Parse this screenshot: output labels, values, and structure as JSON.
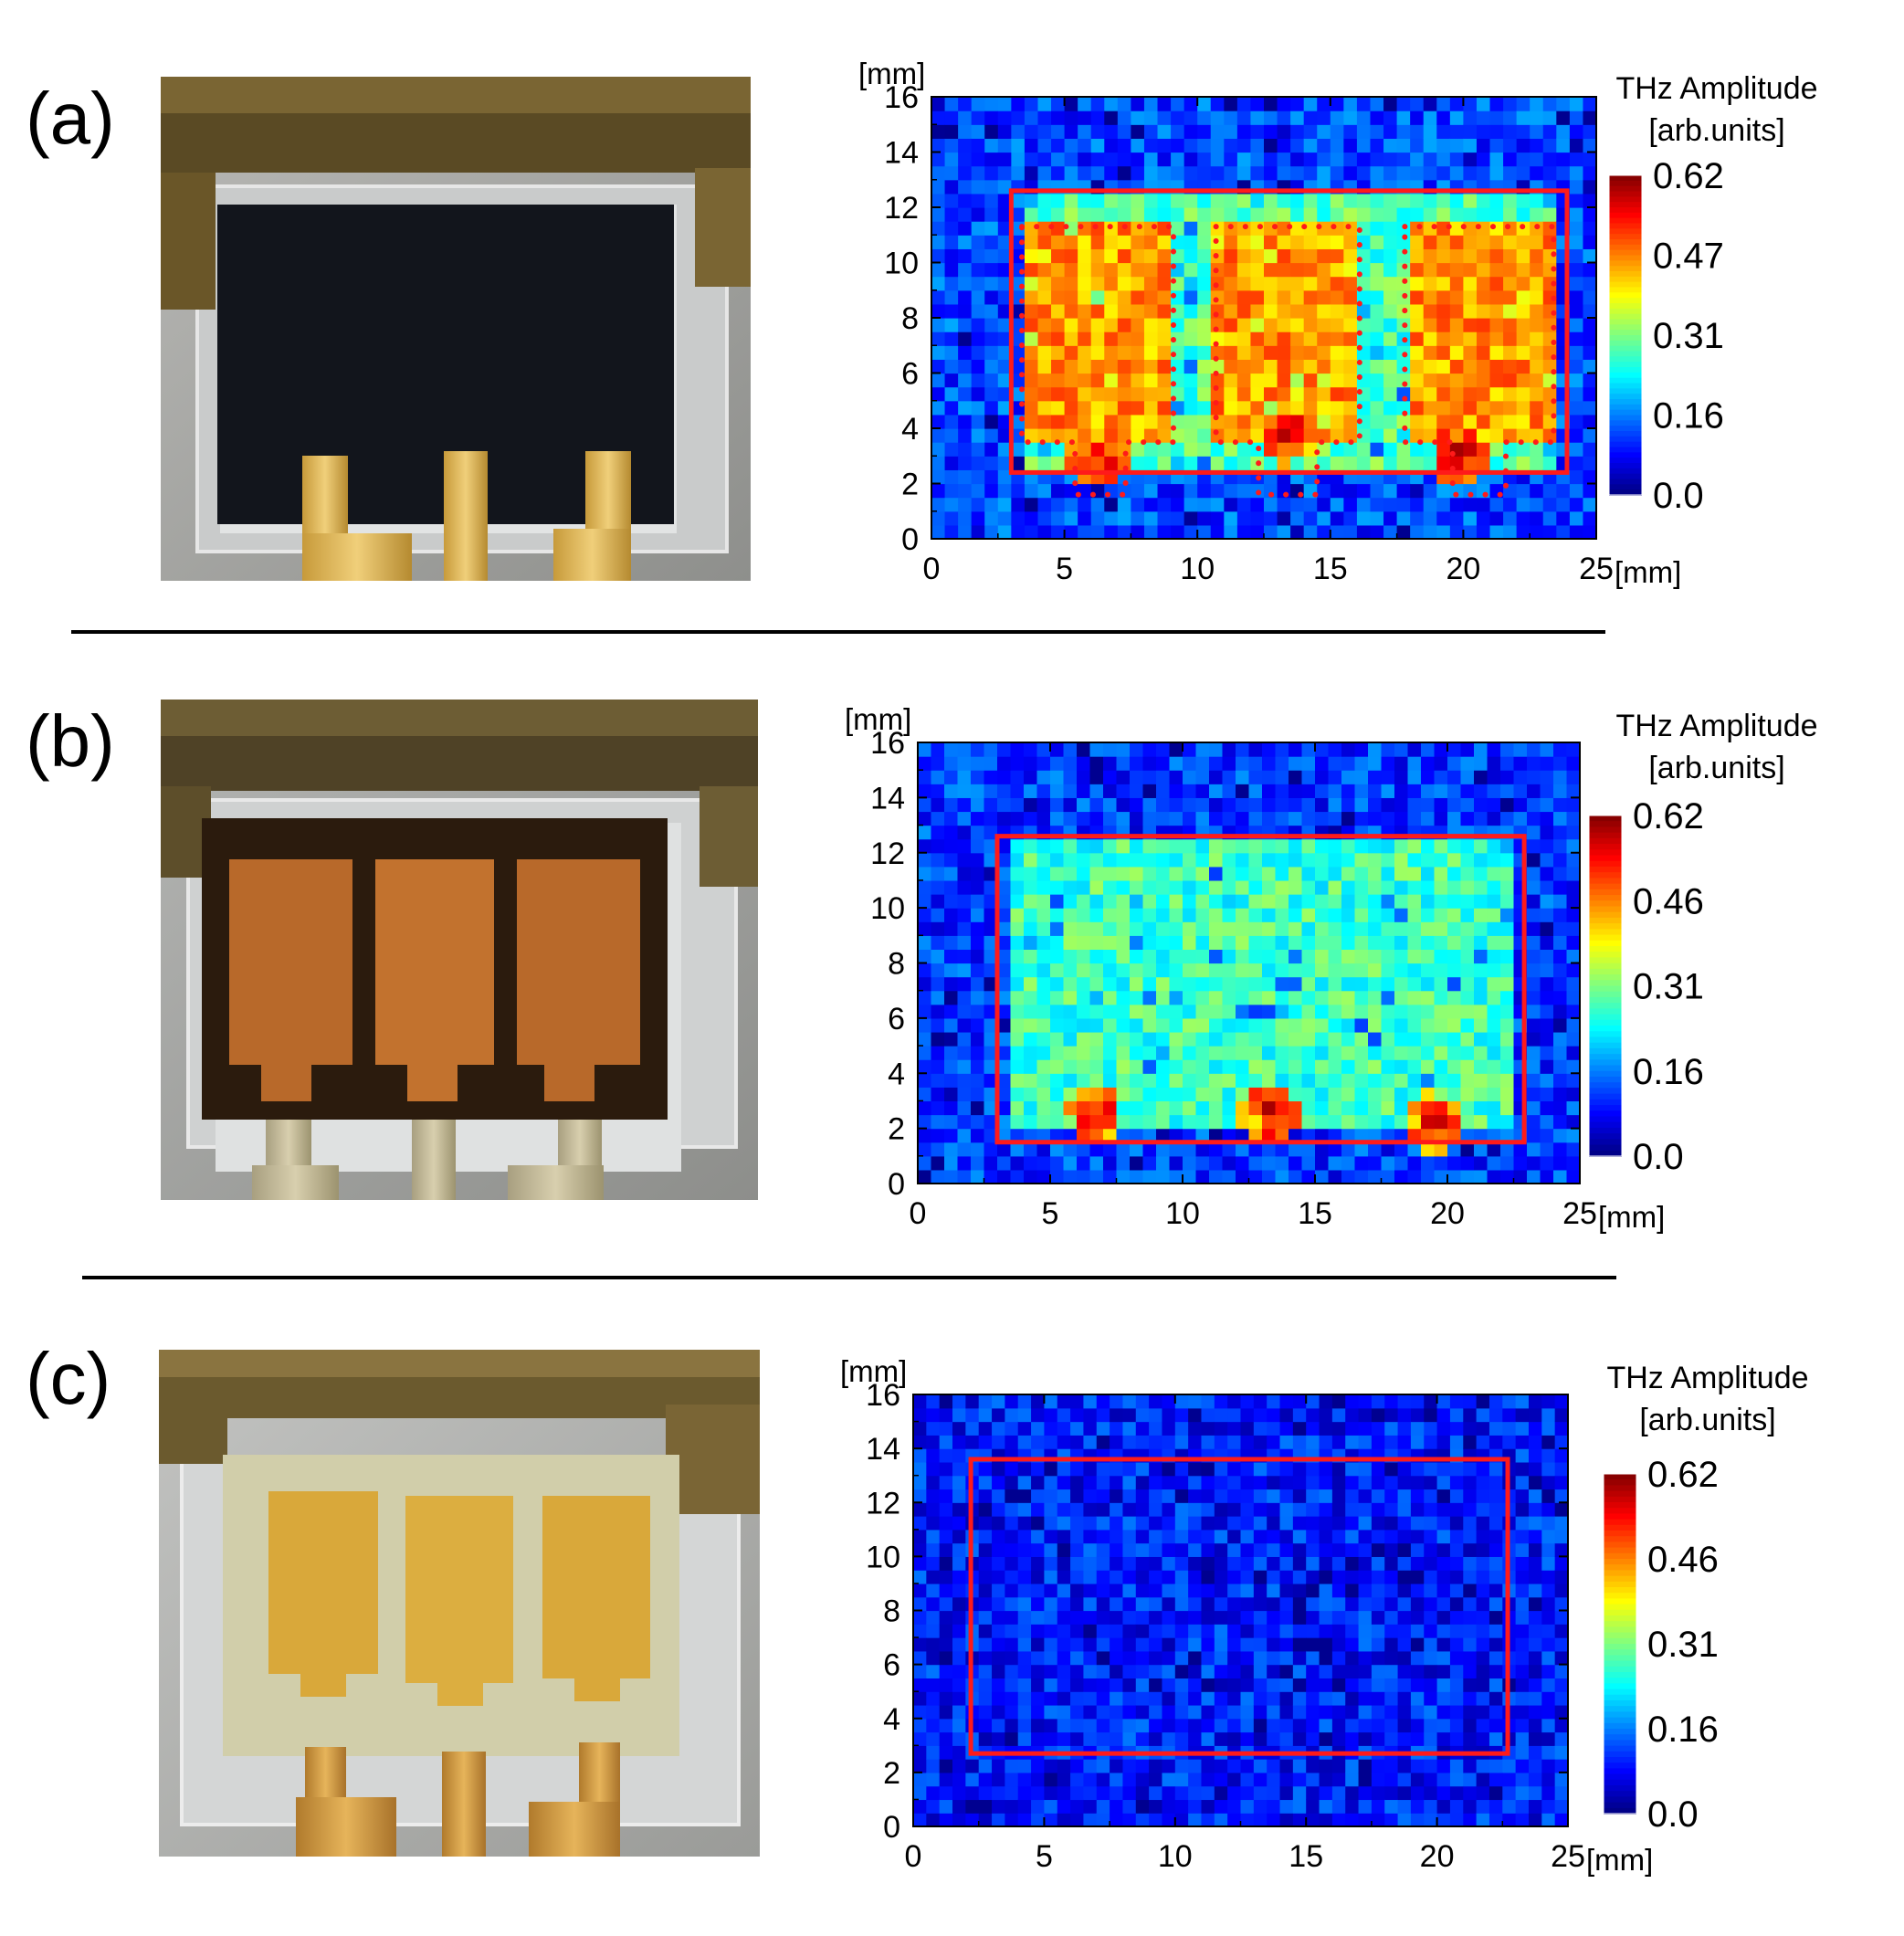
{
  "panels": [
    {
      "label": "(a)",
      "photo": {
        "frame_color": "#6b5a2e",
        "film_color": "#12151c",
        "film_description_pattern": "dark-film"
      },
      "chart_data": {
        "type": "heatmap",
        "x_unit_label": "[mm]",
        "y_unit_label": "[mm]",
        "xlim": [
          0,
          25
        ],
        "ylim": [
          0,
          16
        ],
        "xticks": [
          "0",
          "5",
          "10",
          "15",
          "20",
          "25"
        ],
        "yticks": [
          "0",
          "2",
          "4",
          "6",
          "8",
          "10",
          "12",
          "14",
          "16"
        ],
        "colorbar": {
          "title_line1": "THz Amplitude",
          "title_line2": "[arb.units]",
          "ticks": [
            "0.62",
            "0.47",
            "0.31",
            "0.16",
            "0.0"
          ],
          "range": [
            0.0,
            0.62
          ]
        },
        "description": "High amplitude (green-yellow) over three electrode regions inside the device outline; low amplitude background.",
        "device_rect_mm": {
          "x0": 3.0,
          "x1": 23.9,
          "y0": 2.4,
          "y1": 12.6
        },
        "electrode_outlines_mm": [
          {
            "x0": 3.4,
            "x1": 9.1,
            "y0": 3.5,
            "y1": 11.3,
            "tab_x0": 5.4,
            "tab_x1": 7.3
          },
          {
            "x0": 10.7,
            "x1": 16.1,
            "y0": 3.5,
            "y1": 11.3,
            "tab_x0": 12.3,
            "tab_x1": 14.5
          },
          {
            "x0": 17.8,
            "x1": 23.4,
            "y0": 3.5,
            "y1": 11.3,
            "tab_x0": 19.6,
            "tab_x1": 21.6
          }
        ],
        "hot_spots_mm": [
          [
            6.2,
            3.0
          ],
          [
            13.4,
            3.8
          ],
          [
            19.9,
            3.1
          ]
        ],
        "level_inside_electrodes": 0.45,
        "level_inside_device": 0.28,
        "level_background": 0.12,
        "colors": {
          "device_outline": "#ff1a1a"
        }
      }
    },
    {
      "label": "(b)",
      "photo": {
        "frame_color": "#5a4a28",
        "film_color": "#2a1a0c",
        "electrode_color": "#b86a2a"
      },
      "chart_data": {
        "type": "heatmap",
        "x_unit_label": "[mm]",
        "y_unit_label": "[mm]",
        "xlim": [
          0,
          25
        ],
        "ylim": [
          0,
          16
        ],
        "xticks": [
          "0",
          "5",
          "10",
          "15",
          "20",
          "25"
        ],
        "yticks": [
          "0",
          "2",
          "4",
          "6",
          "8",
          "10",
          "12",
          "14",
          "16"
        ],
        "colorbar": {
          "title_line1": "THz Amplitude",
          "title_line2": "[arb.units]",
          "ticks": [
            "0.62",
            "0.46",
            "0.31",
            "0.16",
            "0.0"
          ],
          "range": [
            0.0,
            0.62
          ]
        },
        "description": "Moderate amplitude (green) across the device area after partial treatment.",
        "device_rect_mm": {
          "x0": 3.0,
          "x1": 22.9,
          "y0": 1.5,
          "y1": 12.6
        },
        "electrode_outlines_mm": [],
        "hot_spots_mm": [
          [
            6.6,
            2.5
          ],
          [
            13.2,
            2.5
          ],
          [
            19.4,
            2.2
          ]
        ],
        "level_inside_electrodes": 0.3,
        "level_inside_device": 0.27,
        "level_background": 0.11,
        "colors": {
          "device_outline": "#ff1a1a"
        }
      }
    },
    {
      "label": "(c)",
      "photo": {
        "frame_color": "#6b5a2e",
        "film_color": "#c8c69a",
        "electrode_color": "#d9a83a"
      },
      "chart_data": {
        "type": "heatmap",
        "x_unit_label": "[mm]",
        "y_unit_label": "[mm]",
        "xlim": [
          0,
          25
        ],
        "ylim": [
          0,
          16
        ],
        "xticks": [
          "0",
          "5",
          "10",
          "15",
          "20",
          "25"
        ],
        "yticks": [
          "0",
          "2",
          "4",
          "6",
          "8",
          "10",
          "12",
          "14",
          "16"
        ],
        "colorbar": {
          "title_line1": "THz Amplitude",
          "title_line2": "[arb.units]",
          "ticks": [
            "0.62",
            "0.46",
            "0.31",
            "0.16",
            "0.0"
          ],
          "range": [
            0.0,
            0.62
          ]
        },
        "description": "Uniformly low amplitude (blue) everywhere.",
        "device_rect_mm": {
          "x0": 2.2,
          "x1": 22.7,
          "y0": 2.7,
          "y1": 13.6
        },
        "electrode_outlines_mm": [],
        "hot_spots_mm": [],
        "level_inside_electrodes": 0.09,
        "level_inside_device": 0.09,
        "level_background": 0.09,
        "colors": {
          "device_outline": "#ff1a1a"
        }
      }
    }
  ]
}
